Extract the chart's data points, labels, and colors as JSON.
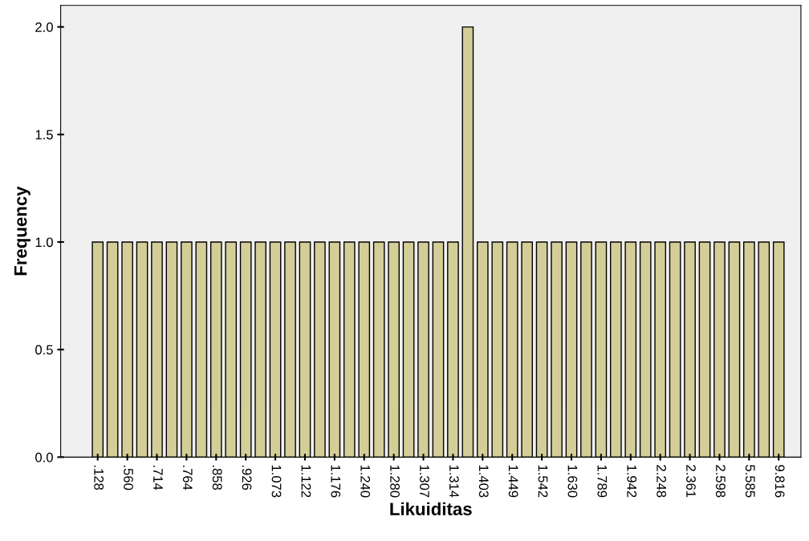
{
  "chart_data": {
    "type": "bar",
    "xlabel": "Likuiditas",
    "ylabel": "Frequency",
    "categories": [
      ".128",
      null,
      ".560",
      null,
      ".714",
      null,
      ".764",
      null,
      ".858",
      null,
      ".926",
      null,
      "1.073",
      null,
      "1.122",
      null,
      "1.176",
      null,
      "1.240",
      null,
      "1.280",
      null,
      "1.307",
      null,
      "1.314",
      null,
      "1.403",
      null,
      "1.449",
      null,
      "1.542",
      null,
      "1.630",
      null,
      "1.789",
      null,
      "1.942",
      null,
      "2.248",
      null,
      "2.361",
      null,
      "2.598",
      null,
      "5.585",
      null,
      "9.816"
    ],
    "values": [
      1,
      1,
      1,
      1,
      1,
      1,
      1,
      1,
      1,
      1,
      1,
      1,
      1,
      1,
      1,
      1,
      1,
      1,
      1,
      1,
      1,
      1,
      1,
      1,
      1,
      2,
      1,
      1,
      1,
      1,
      1,
      1,
      1,
      1,
      1,
      1,
      1,
      1,
      1,
      1,
      1,
      1,
      1,
      1,
      1,
      1,
      1
    ],
    "color": "#d3ce97",
    "ylim": [
      0,
      2.1
    ],
    "yticks": [
      {
        "value": 0,
        "label": "0.0"
      },
      {
        "value": 0.5,
        "label": "0.5"
      },
      {
        "value": 1,
        "label": "1.0"
      },
      {
        "value": 1.5,
        "label": "1.5"
      },
      {
        "value": 2,
        "label": "2.0"
      }
    ],
    "grid": false,
    "legend": false
  }
}
